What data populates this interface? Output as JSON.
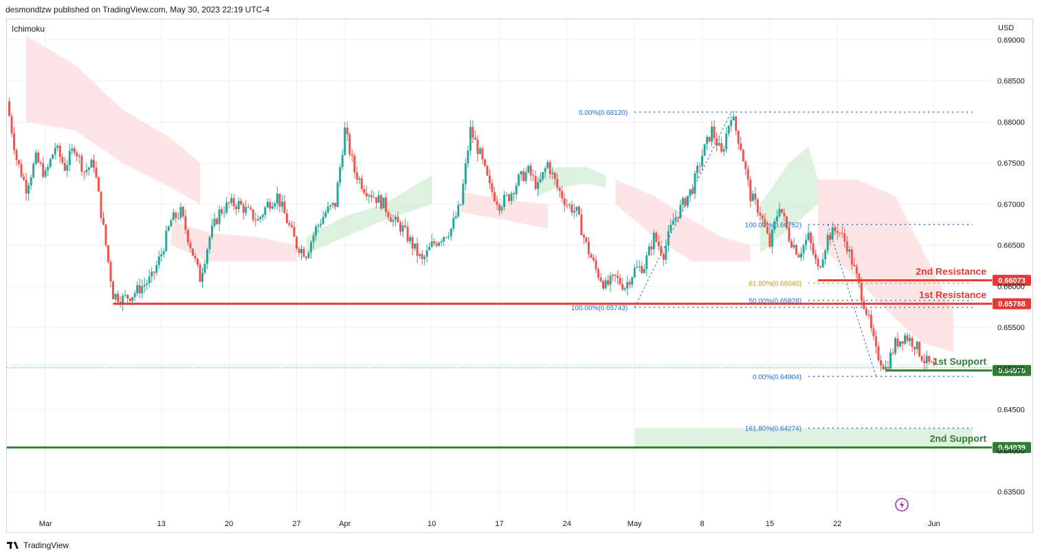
{
  "header": {
    "text": "desmondlzw published on TradingView.com, May 30, 2023 22:19 UTC-4"
  },
  "indicator_label": "Ichimoku",
  "currency": "USD",
  "footer": {
    "brand": "TradingView"
  },
  "colors": {
    "up": "#26a69a",
    "down": "#ef5350",
    "resistance": "#e53935",
    "support": "#2e7d32",
    "fib": "#1e6fd9",
    "fib_gold": "#d69a00",
    "cloud_bull": "#d6efd8",
    "cloud_bear": "#fde0e0",
    "grid": "#eef0f3",
    "axis_text": "#131722"
  },
  "chart_data": {
    "type": "candlestick",
    "symbol_unit": "USD",
    "ylim": [
      0.6325,
      0.6925
    ],
    "y_ticks": [
      0.635,
      0.64,
      0.645,
      0.65,
      0.655,
      0.66,
      0.665,
      0.67,
      0.675,
      0.68,
      0.685,
      0.69
    ],
    "y_tick_labels": [
      "0.63500",
      "0.64000",
      "0.64500",
      "0.65000",
      "0.65500",
      "0.66000",
      "0.66500",
      "0.67000",
      "0.67500",
      "0.68000",
      "0.68500",
      "0.69000"
    ],
    "x_ticks": [
      {
        "label": "Mar",
        "day": 0
      },
      {
        "label": "13",
        "day": 12
      },
      {
        "label": "20",
        "day": 19
      },
      {
        "label": "27",
        "day": 26
      },
      {
        "label": "Apr",
        "day": 31
      },
      {
        "label": "10",
        "day": 40
      },
      {
        "label": "17",
        "day": 47
      },
      {
        "label": "24",
        "day": 54
      },
      {
        "label": "May",
        "day": 61
      },
      {
        "label": "8",
        "day": 68
      },
      {
        "label": "15",
        "day": 75
      },
      {
        "label": "22",
        "day": 82
      },
      {
        "label": "Jun",
        "day": 92
      }
    ],
    "x_range_days": [
      -4,
      98
    ],
    "price_path": [
      [
        -4,
        0.6825
      ],
      [
        -3,
        0.6755
      ],
      [
        -2,
        0.672
      ],
      [
        -1,
        0.6755
      ],
      [
        0,
        0.6735
      ],
      [
        1,
        0.677
      ],
      [
        2,
        0.6745
      ],
      [
        3,
        0.677
      ],
      [
        4,
        0.674
      ],
      [
        5,
        0.675
      ],
      [
        6,
        0.667
      ],
      [
        7,
        0.659
      ],
      [
        8,
        0.6585
      ],
      [
        9,
        0.659
      ],
      [
        10,
        0.66
      ],
      [
        11,
        0.661
      ],
      [
        12,
        0.664
      ],
      [
        13,
        0.668
      ],
      [
        14,
        0.669
      ],
      [
        15,
        0.665
      ],
      [
        16,
        0.661
      ],
      [
        17,
        0.666
      ],
      [
        18,
        0.669
      ],
      [
        19,
        0.67
      ],
      [
        20,
        0.67
      ],
      [
        21,
        0.669
      ],
      [
        22,
        0.668
      ],
      [
        23,
        0.67
      ],
      [
        24,
        0.671
      ],
      [
        25,
        0.668
      ],
      [
        26,
        0.665
      ],
      [
        27,
        0.664
      ],
      [
        28,
        0.667
      ],
      [
        29,
        0.669
      ],
      [
        30,
        0.67
      ],
      [
        31,
        0.679
      ],
      [
        32,
        0.674
      ],
      [
        33,
        0.672
      ],
      [
        34,
        0.671
      ],
      [
        35,
        0.67
      ],
      [
        36,
        0.668
      ],
      [
        37,
        0.667
      ],
      [
        38,
        0.665
      ],
      [
        39,
        0.663
      ],
      [
        40,
        0.665
      ],
      [
        41,
        0.666
      ],
      [
        42,
        0.667
      ],
      [
        43,
        0.67
      ],
      [
        44,
        0.679
      ],
      [
        45,
        0.676
      ],
      [
        46,
        0.672
      ],
      [
        47,
        0.67
      ],
      [
        48,
        0.671
      ],
      [
        49,
        0.673
      ],
      [
        50,
        0.674
      ],
      [
        51,
        0.672
      ],
      [
        52,
        0.675
      ],
      [
        53,
        0.672
      ],
      [
        54,
        0.67
      ],
      [
        55,
        0.669
      ],
      [
        56,
        0.665
      ],
      [
        57,
        0.662
      ],
      [
        58,
        0.66
      ],
      [
        59,
        0.661
      ],
      [
        60,
        0.66
      ],
      [
        61,
        0.662
      ],
      [
        62,
        0.6625
      ],
      [
        63,
        0.666
      ],
      [
        64,
        0.664
      ],
      [
        65,
        0.668
      ],
      [
        66,
        0.67
      ],
      [
        67,
        0.672
      ],
      [
        68,
        0.676
      ],
      [
        69,
        0.679
      ],
      [
        70,
        0.676
      ],
      [
        71,
        0.681
      ],
      [
        72,
        0.677
      ],
      [
        73,
        0.671
      ],
      [
        74,
        0.669
      ],
      [
        75,
        0.665
      ],
      [
        76,
        0.67
      ],
      [
        77,
        0.666
      ],
      [
        78,
        0.664
      ],
      [
        79,
        0.666
      ],
      [
        80,
        0.662
      ],
      [
        81,
        0.666
      ],
      [
        82,
        0.667
      ],
      [
        83,
        0.665
      ],
      [
        84,
        0.661
      ],
      [
        85,
        0.657
      ],
      [
        86,
        0.652
      ],
      [
        87,
        0.65
      ],
      [
        88,
        0.653
      ],
      [
        89,
        0.654
      ],
      [
        90,
        0.653
      ],
      [
        91,
        0.651
      ],
      [
        92,
        0.65
      ]
    ],
    "cloud_bear_bands": [
      {
        "days": [
          -2,
          3,
          8,
          13,
          16
        ],
        "top": [
          0.6905,
          0.687,
          0.6815,
          0.678,
          0.675
        ],
        "bottom": [
          0.68,
          0.679,
          0.675,
          0.672,
          0.67
        ]
      },
      {
        "days": [
          13,
          17,
          22,
          26
        ],
        "top": [
          0.668,
          0.6665,
          0.666,
          0.665
        ],
        "bottom": [
          0.665,
          0.663,
          0.663,
          0.663
        ]
      },
      {
        "days": [
          43,
          48,
          52
        ],
        "top": [
          0.6715,
          0.6705,
          0.67
        ],
        "bottom": [
          0.669,
          0.668,
          0.667
        ]
      },
      {
        "days": [
          59,
          63,
          67,
          70,
          73
        ],
        "top": [
          0.673,
          0.671,
          0.668,
          0.666,
          0.665
        ],
        "bottom": [
          0.67,
          0.666,
          0.663,
          0.663,
          0.663
        ]
      },
      {
        "days": [
          80,
          84,
          88,
          91,
          94
        ],
        "top": [
          0.673,
          0.673,
          0.671,
          0.664,
          0.657
        ],
        "bottom": [
          0.665,
          0.661,
          0.656,
          0.653,
          0.652
        ]
      }
    ],
    "cloud_bull_bands": [
      {
        "days": [
          27,
          31,
          35,
          40
        ],
        "top": [
          0.666,
          0.6685,
          0.67,
          0.6735
        ],
        "bottom": [
          0.664,
          0.666,
          0.668,
          0.67
        ]
      },
      {
        "days": [
          51,
          53,
          56,
          58
        ],
        "top": [
          0.6735,
          0.6745,
          0.6745,
          0.6735
        ],
        "bottom": [
          0.671,
          0.672,
          0.6725,
          0.672
        ]
      },
      {
        "days": [
          74,
          77,
          79,
          80
        ],
        "top": [
          0.67,
          0.675,
          0.677,
          0.673
        ],
        "bottom": [
          0.664,
          0.667,
          0.669,
          0.67
        ]
      }
    ],
    "fib_upper": {
      "day_start": 61,
      "day_end": 96,
      "levels": [
        {
          "label": "0.00%(0.68120)",
          "value": 0.6812,
          "color": "fib"
        },
        {
          "label": "100.00%(0.65743)",
          "value": 0.65743,
          "color": "fib"
        }
      ],
      "trend_from": [
        61,
        0.65743
      ],
      "trend_to": [
        71,
        0.6812
      ]
    },
    "fib_lower": {
      "day_start": 79,
      "day_end": 96,
      "levels": [
        {
          "label": "100.00%(0.66752)",
          "value": 0.66752,
          "color": "fib"
        },
        {
          "label": "61.80%(0.66040)",
          "value": 0.6604,
          "color": "fib_gold"
        },
        {
          "label": "50.00%(0.65828)",
          "value": 0.65828,
          "color": "fib"
        },
        {
          "label": "0.00%(0.64904)",
          "value": 0.64904,
          "color": "fib"
        },
        {
          "label": "161.80%(0.64274)",
          "value": 0.64274,
          "color": "fib"
        }
      ],
      "trend_from": [
        81,
        0.66752
      ],
      "trend_to": [
        86,
        0.64904
      ]
    },
    "target_zone": {
      "day_start": 61,
      "day_end": 96,
      "top": 0.64274,
      "bottom": 0.64039
    },
    "levels": [
      {
        "name": "2nd Resistance",
        "value": 0.66073,
        "price_label": "0.66073",
        "kind": "resistance",
        "day_start": 80
      },
      {
        "name": "1st Resistance",
        "value": 0.65788,
        "price_label": "0.65788",
        "kind": "resistance",
        "day_start": 7
      },
      {
        "name": "1st Support",
        "value": 0.64976,
        "price_label": "0.64976",
        "kind": "support",
        "day_start": 87
      },
      {
        "name": "2nd Support",
        "value": 0.64039,
        "price_label": "0.64039",
        "kind": "support",
        "day_start": -4
      }
    ],
    "current_price": 0.6501,
    "grid": true
  }
}
